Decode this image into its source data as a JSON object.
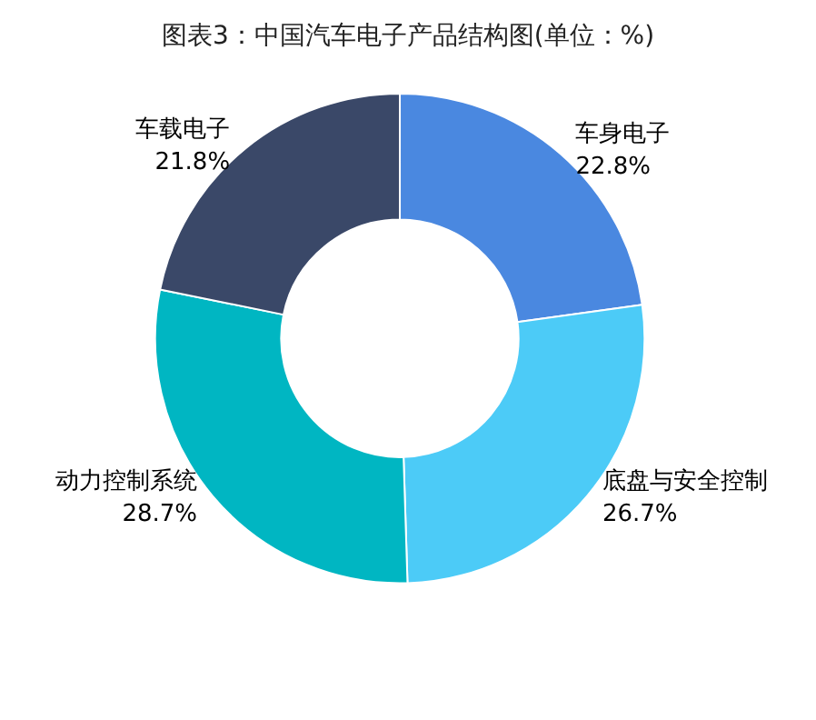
{
  "chart_data": {
    "type": "donut",
    "title": "图表3：中国汽车电子产品结构图(单位：%)",
    "categories": [
      "车身电子",
      "底盘与安全控制",
      "动力控制系统",
      "车载电子"
    ],
    "values": [
      22.8,
      26.7,
      28.7,
      21.8
    ],
    "value_labels": [
      "22.8%",
      "26.7%",
      "28.7%",
      "21.8%"
    ],
    "colors": [
      "#4a88e0",
      "#4ccbf7",
      "#00b6c2",
      "#3a4868"
    ],
    "legend": false
  }
}
